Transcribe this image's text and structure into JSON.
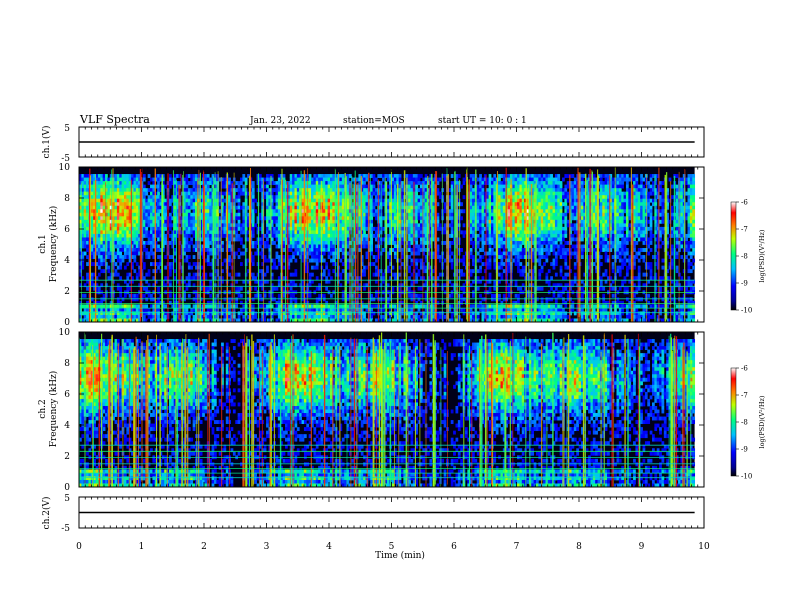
{
  "header": {
    "title": "VLF Spectra",
    "date": "Jan. 23, 2022",
    "station": "station=MOS",
    "start_ut": "start UT =  10: 0  : 1"
  },
  "chart_data": [
    {
      "type": "line",
      "name": "ch1-waveform",
      "ylabel": "ch.1(V)",
      "ylim": [
        -5,
        5
      ],
      "yticks": [
        "5",
        "-5"
      ],
      "x": [
        0,
        10
      ],
      "y": [
        0,
        0
      ]
    },
    {
      "type": "heatmap",
      "name": "ch1-spectrogram",
      "ylabel": "ch.1\nFrequency (kHz)",
      "ylim": [
        0,
        10
      ],
      "yticks": [
        "0",
        "2",
        "4",
        "6",
        "8",
        "10"
      ],
      "xlim": [
        0,
        10
      ],
      "data_end_min": 9.85,
      "colorbar": {
        "label": "log(PSD)(V²/Hz)",
        "range": [
          -10,
          -6
        ],
        "ticks": [
          "-6",
          "-7",
          "-8",
          "-9",
          "-10"
        ]
      }
    },
    {
      "type": "heatmap",
      "name": "ch2-spectrogram",
      "ylabel": "ch.2\nFrequency (kHz)",
      "ylim": [
        0,
        10
      ],
      "yticks": [
        "0",
        "2",
        "4",
        "6",
        "8",
        "10"
      ],
      "xlim": [
        0,
        10
      ],
      "data_end_min": 9.85,
      "colorbar": {
        "label": "log(PSD)(V²/Hz)",
        "range": [
          -10,
          -6
        ],
        "ticks": [
          "-6",
          "-7",
          "-8",
          "-9",
          "-10"
        ]
      }
    },
    {
      "type": "line",
      "name": "ch2-waveform",
      "ylabel": "ch.2(V)",
      "ylim": [
        -5,
        5
      ],
      "yticks": [
        "5",
        "-5"
      ],
      "x": [
        0,
        10
      ],
      "y": [
        0,
        0
      ]
    }
  ],
  "xaxis": {
    "label": "Time (min)",
    "range": [
      0,
      10
    ],
    "ticks": [
      "0",
      "1",
      "2",
      "3",
      "4",
      "5",
      "6",
      "7",
      "8",
      "9",
      "10"
    ]
  }
}
